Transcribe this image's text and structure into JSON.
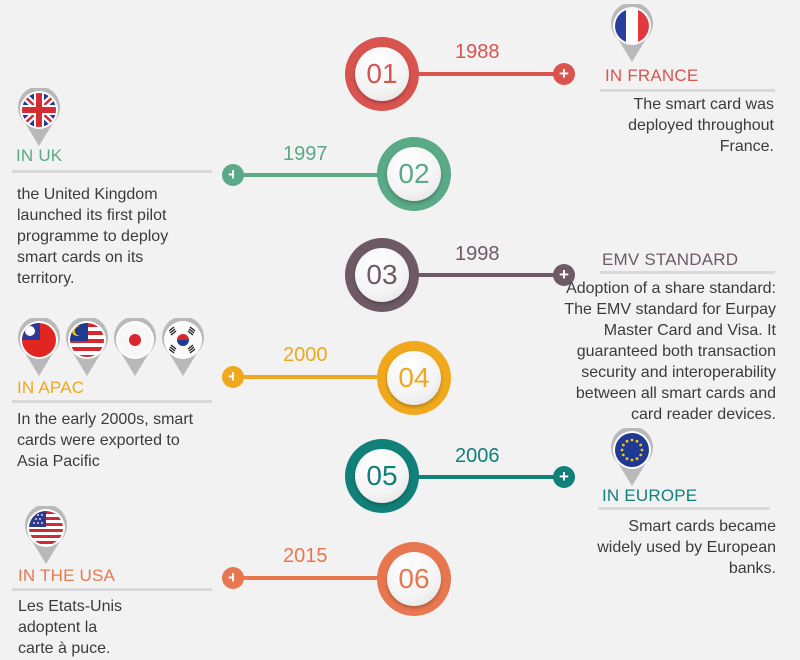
{
  "colors": {
    "red": "#d9534f",
    "green": "#5aa987",
    "purple": "#6e5a66",
    "yellow": "#f0a81c",
    "teal": "#118079",
    "orange": "#e8774f",
    "text": "#3b3b3b"
  },
  "milestones": [
    {
      "number": "01",
      "year": "1988",
      "region": "IN FRANCE",
      "description": [
        "The smart card was",
        "deployed throughout",
        "France."
      ],
      "flags": [
        "france-flag-icon"
      ]
    },
    {
      "number": "02",
      "year": "1997",
      "region": "IN UK",
      "description": [
        "the United Kingdom",
        "launched its first pilot",
        "programme to deploy",
        "smart cards on its",
        "territory."
      ],
      "flags": [
        "uk-flag-icon"
      ]
    },
    {
      "number": "03",
      "year": "1998",
      "region": "EMV STANDARD",
      "description": [
        "Adoption of a share standard:",
        "The EMV standard for Eurpay",
        "Master Card and Visa. It",
        "guaranteed both transaction",
        "security and interoperability",
        "between all smart cards and",
        "card reader devices."
      ],
      "flags": []
    },
    {
      "number": "04",
      "year": "2000",
      "region": "IN APAC",
      "description": [
        "In the early 2000s, smart",
        "cards were exported to",
        "Asia Pacific"
      ],
      "flags": [
        "taiwan-flag-icon",
        "malaysia-flag-icon",
        "japan-flag-icon",
        "south-korea-flag-icon"
      ]
    },
    {
      "number": "05",
      "year": "2006",
      "region": "IN EUROPE",
      "description": [
        "Smart cards became",
        "widely used by European",
        "banks."
      ],
      "flags": [
        "eu-flag-icon"
      ]
    },
    {
      "number": "06",
      "year": "2015",
      "region": "IN THE USA",
      "description": [
        "Les Etats-Unis",
        "adoptent la",
        "carte à puce."
      ],
      "flags": [
        "usa-flag-icon"
      ]
    }
  ]
}
